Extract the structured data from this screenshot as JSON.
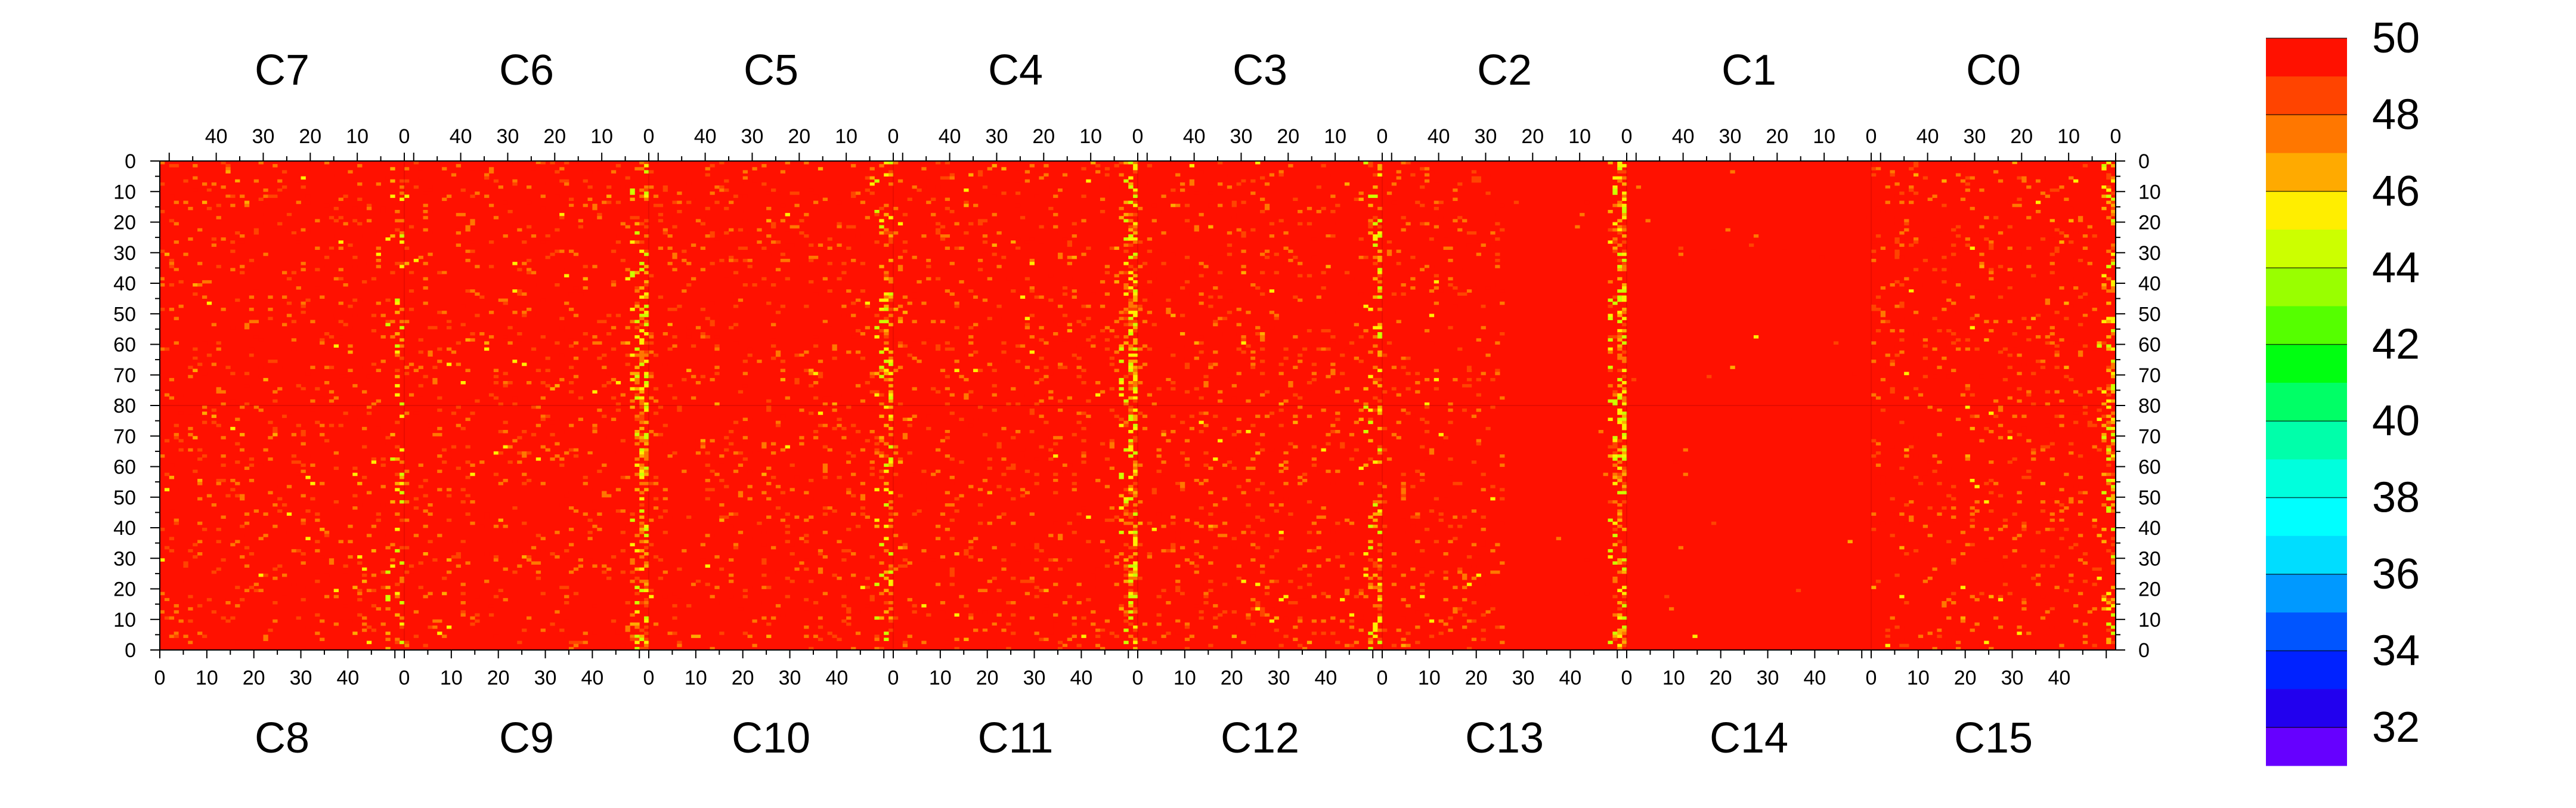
{
  "chart_data": {
    "type": "heatmap",
    "title": "",
    "chip_labels_top": [
      "C7",
      "C6",
      "C5",
      "C4",
      "C3",
      "C2",
      "C1",
      "C0"
    ],
    "chip_labels_bottom": [
      "C8",
      "C9",
      "C10",
      "C11",
      "C12",
      "C13",
      "C14",
      "C15"
    ],
    "x_ticks_top": [
      "40",
      "30",
      "20",
      "10",
      "0"
    ],
    "x_ticks_bottom": [
      "0",
      "10",
      "20",
      "30",
      "40"
    ],
    "y_ticks": [
      "0",
      "10",
      "20",
      "30",
      "40",
      "50",
      "60",
      "70",
      "80",
      "70",
      "60",
      "50",
      "40",
      "30",
      "20",
      "10",
      "0"
    ],
    "color_scale": {
      "min": 31,
      "max": 50,
      "tick_labels": [
        "50",
        "48",
        "46",
        "44",
        "42",
        "40",
        "38",
        "36",
        "34",
        "32"
      ],
      "colors": [
        "#ff1100",
        "#ff4400",
        "#ff7700",
        "#ffaa00",
        "#ffee00",
        "#ccff00",
        "#99ff00",
        "#55ff00",
        "#00ff11",
        "#00ff66",
        "#00ffaa",
        "#00ffdd",
        "#00ffff",
        "#00ddff",
        "#0099ff",
        "#0055ff",
        "#0022ff",
        "#2200ee",
        "#6600ff"
      ]
    },
    "chips_per_half": 8,
    "columns_per_chip": 52,
    "rows_per_half": 80,
    "typical_value": 50,
    "notes_hot_columns": "Chip-edge columns near 0 show lower values (~44-48); C13/C14 bottom-right and C2/C1 top-right regions are uniform 50."
  }
}
